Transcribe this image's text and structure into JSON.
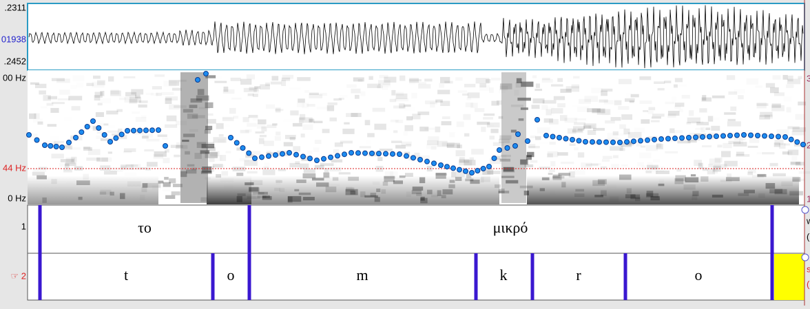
{
  "waveform": {
    "max_label": ".2311",
    "zero_label": "01938",
    "min_label": ".2452"
  },
  "spectrogram": {
    "top_label": "00 Hz",
    "pitch_label": "44 Hz",
    "bottom_label": "0 Hz",
    "right_labels": [
      "3",
      "2",
      "1"
    ]
  },
  "tiers": [
    {
      "number": "1",
      "intervals": [
        "το",
        "μικρό"
      ],
      "side": [
        "w",
        "("
      ]
    },
    {
      "number": "☞ 2",
      "intervals": [
        "t",
        "o",
        "m",
        "k",
        "r",
        "o"
      ],
      "side": [
        "s",
        "("
      ]
    }
  ]
}
